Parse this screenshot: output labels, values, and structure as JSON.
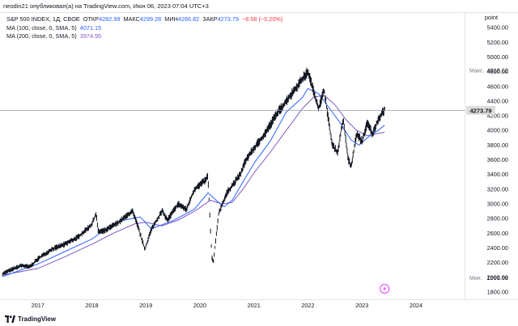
{
  "header": {
    "publisher_line": "neodin21 опубликовал(а) на TradingView.com, Июн 06, 2023 07:04 UTC+3"
  },
  "legend": {
    "symbol": "S&P 500 INDEX, 1Д, CBOE",
    "open_label": "ОТКР",
    "open_value": "4282.99",
    "high_label": "МАКС",
    "high_value": "4299.28",
    "low_label": "МИН",
    "low_value": "4266.82",
    "close_label": "ЗАКР",
    "close_value": "4273.79",
    "change_value": "−8.58 (−0.20%)",
    "ma1_label": "MA (100, close, 0, SMA, 5)",
    "ma1_value": "4071.15",
    "ma2_label": "MA (200, close, 0, SMA, 5)",
    "ma2_value": "3974.95"
  },
  "footer": {
    "brand": "TradingView"
  },
  "colors": {
    "price": "#131722",
    "ma100": "#2962ff",
    "ma200": "#7e57c2",
    "crosshair": "#9598a1",
    "flash_icon": "#e040fb"
  },
  "icons": {
    "brand_logo": "tradingview-logo-icon",
    "flash": "lightning-icon"
  },
  "chart_data": {
    "type": "line",
    "title": "S&P 500 INDEX, 1Д, CBOE",
    "xlabel": "",
    "ylabel": "point",
    "ylim": [
      1700,
      5600
    ],
    "xlim": [
      2016.3,
      2024.9
    ],
    "y_ticks": [
      1800,
      2000,
      2200,
      2400,
      2600,
      2800,
      3000,
      3200,
      3400,
      3600,
      3800,
      4000,
      4200,
      4400,
      4600,
      4800,
      5000,
      5200,
      5400
    ],
    "y_tick_labels": [
      "1800.00",
      "2000.00",
      "2200.00",
      "2400.00",
      "2600.00",
      "2800.00",
      "3000.00",
      "3200.00",
      "3400.00",
      "3600.00",
      "3800.00",
      "4000.00",
      "4200.00",
      "4400.00",
      "4600.00",
      "4800.00",
      "5000.00",
      "5200.00",
      "5400.00"
    ],
    "x_ticks": [
      "2017",
      "2018",
      "2019",
      "2020",
      "2021",
      "2022",
      "2023",
      "2024"
    ],
    "x_tick_values": [
      2017,
      2018,
      2019,
      2020,
      2021,
      2022,
      2023,
      2024
    ],
    "price_label": "4273.79",
    "max_label": "Макс.",
    "max_value": "4818.62",
    "min_label": "Мин.",
    "min_value": "1991.68",
    "series": [
      {
        "name": "S&P 500 INDEX",
        "x": [
          2016.35,
          2016.5,
          2016.7,
          2016.85,
          2017.0,
          2017.25,
          2017.5,
          2017.75,
          2018.0,
          2018.08,
          2018.12,
          2018.25,
          2018.5,
          2018.75,
          2018.85,
          2018.98,
          2019.1,
          2019.3,
          2019.4,
          2019.6,
          2019.75,
          2019.9,
          2020.1,
          2020.15,
          2020.22,
          2020.25,
          2020.35,
          2020.5,
          2020.65,
          2020.75,
          2020.85,
          2021.0,
          2021.2,
          2021.4,
          2021.6,
          2021.75,
          2021.9,
          2022.0,
          2022.2,
          2022.3,
          2022.45,
          2022.55,
          2022.65,
          2022.75,
          2022.8,
          2022.9,
          2023.0,
          2023.1,
          2023.2,
          2023.3,
          2023.42
        ],
        "y": [
          2050,
          2100,
          2160,
          2140,
          2250,
          2380,
          2450,
          2550,
          2720,
          2870,
          2620,
          2640,
          2750,
          2900,
          2700,
          2380,
          2650,
          2900,
          2780,
          3000,
          2920,
          3200,
          3320,
          3380,
          2280,
          2200,
          2880,
          3150,
          3300,
          3400,
          3600,
          3750,
          3950,
          4200,
          4400,
          4550,
          4700,
          4800,
          4300,
          4550,
          3800,
          3700,
          4150,
          3600,
          3500,
          3950,
          3850,
          4100,
          3950,
          4150,
          4290
        ]
      },
      {
        "name": "MA (100, close, 0, SMA, 5)",
        "x": [
          2016.35,
          2017.0,
          2017.5,
          2018.0,
          2018.3,
          2018.6,
          2018.9,
          2019.1,
          2019.5,
          2019.9,
          2020.15,
          2020.3,
          2020.45,
          2020.6,
          2020.8,
          2021.0,
          2021.3,
          2021.6,
          2021.9,
          2022.0,
          2022.2,
          2022.4,
          2022.6,
          2022.8,
          2022.95,
          2023.1,
          2023.3,
          2023.42
        ],
        "y": [
          2010,
          2180,
          2350,
          2520,
          2680,
          2780,
          2820,
          2660,
          2770,
          2930,
          3150,
          3050,
          2960,
          3050,
          3300,
          3550,
          3850,
          4250,
          4450,
          4570,
          4500,
          4300,
          4100,
          3870,
          3800,
          3900,
          4000,
          4071
        ]
      },
      {
        "name": "MA (200, close, 0, SMA, 5)",
        "x": [
          2016.35,
          2017.0,
          2017.5,
          2018.0,
          2018.4,
          2018.8,
          2019.0,
          2019.3,
          2019.6,
          2019.9,
          2020.2,
          2020.4,
          2020.6,
          2020.8,
          2021.0,
          2021.3,
          2021.6,
          2021.9,
          2022.1,
          2022.3,
          2022.5,
          2022.7,
          2022.9,
          2023.1,
          2023.3,
          2023.42
        ],
        "y": [
          2030,
          2120,
          2280,
          2450,
          2600,
          2730,
          2750,
          2700,
          2780,
          2900,
          3050,
          3000,
          3020,
          3200,
          3420,
          3700,
          4000,
          4300,
          4450,
          4480,
          4350,
          4150,
          4000,
          3930,
          3960,
          3975
        ]
      }
    ]
  }
}
